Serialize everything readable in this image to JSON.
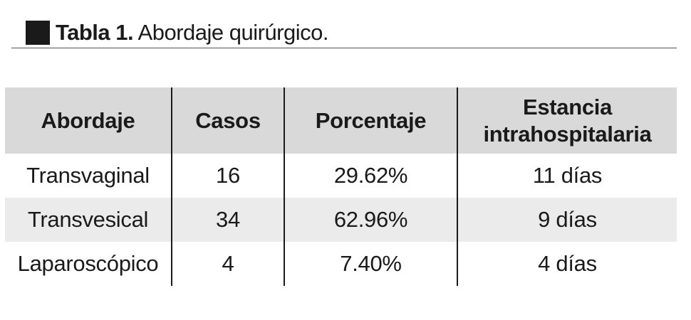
{
  "table": {
    "label": "Tabla 1.",
    "caption": "Abordaje quirúrgico.",
    "headers": {
      "col1": "Abordaje",
      "col2": "Casos",
      "col3": "Porcentaje",
      "col4_line1": "Estancia",
      "col4_line2": "intrahospitalaria"
    },
    "rows": [
      {
        "abordaje": "Transvaginal",
        "casos": "16",
        "porcentaje": "29.62%",
        "estancia": "11 días"
      },
      {
        "abordaje": "Transvesical",
        "casos": "34",
        "porcentaje": "62.96%",
        "estancia": "9 días"
      },
      {
        "abordaje": "Laparoscópico",
        "casos": "4",
        "porcentaje": "7.40%",
        "estancia": "4 días"
      }
    ]
  },
  "colors": {
    "header_bg": "#d9d9d9",
    "stripe_bg": "#ebebeb",
    "text": "#1a1a1a"
  }
}
